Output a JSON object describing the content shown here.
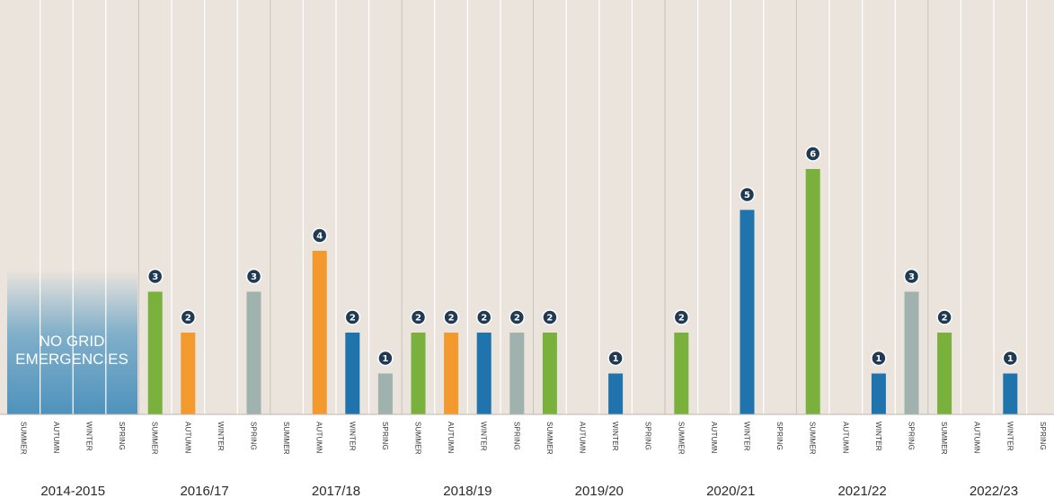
{
  "chart_data": {
    "type": "bar",
    "title": "",
    "xlabel": "",
    "ylabel": "",
    "ylim": [
      0,
      6
    ],
    "seasons": [
      "SUMMER",
      "AUTUMN",
      "WINTER",
      "SPRING"
    ],
    "years": [
      "2014-2015",
      "2016/17",
      "2017/18",
      "2018/19",
      "2019/20",
      "2020/21",
      "2021/22",
      "2022/23"
    ],
    "annotation": "NO GRID EMERGENCIES",
    "annotation_lines": [
      "NO GRID",
      "EMERGENCIES"
    ],
    "colors": {
      "SUMMER": "#7ab03c",
      "AUTUMN": "#f29a2e",
      "WINTER": "#1f74ae",
      "SPRING": "#9fb2ad",
      "badge": "#1f3a52",
      "background": "#ebe4dd",
      "annotation_fill": "#5b9cc2"
    },
    "values": [
      [
        0,
        0,
        0,
        0
      ],
      [
        3,
        2,
        0,
        3
      ],
      [
        0,
        4,
        2,
        1
      ],
      [
        2,
        2,
        2,
        2
      ],
      [
        2,
        0,
        1,
        0
      ],
      [
        2,
        0,
        5,
        0
      ],
      [
        6,
        0,
        1,
        3
      ],
      [
        2,
        0,
        1,
        0
      ]
    ]
  }
}
